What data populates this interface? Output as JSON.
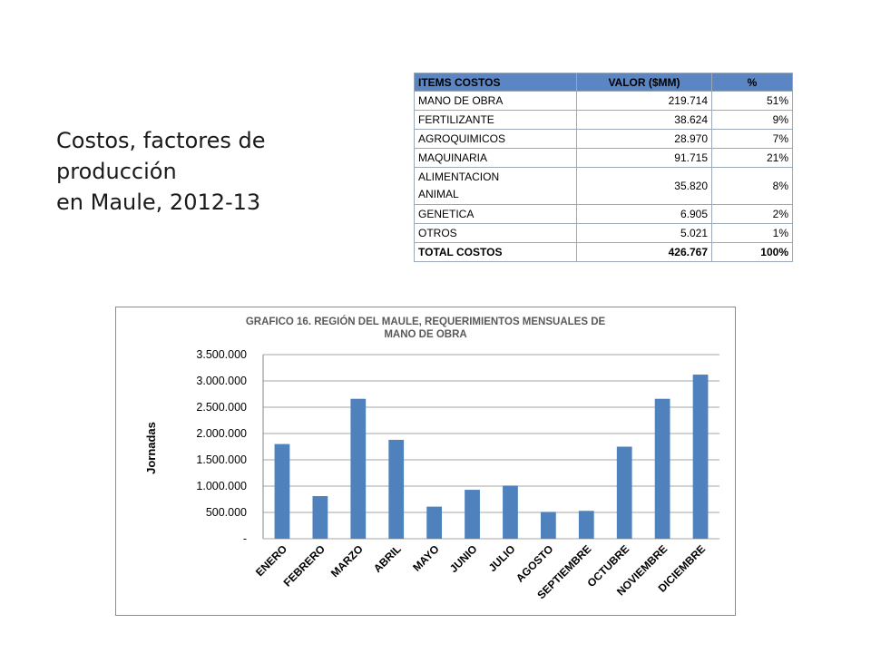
{
  "slide": {
    "title_line1": "Costos, factores de producción",
    "title_line2": "en Maule, 2012-13"
  },
  "cost_table": {
    "headers": [
      "ITEMS COSTOS",
      "VALOR ($MM)",
      "%"
    ],
    "rows": [
      {
        "item": "MANO DE OBRA",
        "value": "219.714",
        "pct": "51%"
      },
      {
        "item": "FERTILIZANTE",
        "value": "38.624",
        "pct": "9%"
      },
      {
        "item": "AGROQUIMICOS",
        "value": "28.970",
        "pct": "7%"
      },
      {
        "item": "MAQUINARIA",
        "value": "91.715",
        "pct": "21%"
      },
      {
        "item_line1": "ALIMENTACION",
        "item_line2": "ANIMAL",
        "value": "35.820",
        "pct": "8%"
      },
      {
        "item": "GENETICA",
        "value": "6.905",
        "pct": "2%"
      },
      {
        "item": "OTROS",
        "value": "5.021",
        "pct": "1%"
      }
    ],
    "total": {
      "item": "TOTAL COSTOS",
      "value": "426.767",
      "pct": "100%"
    },
    "header_color": "#5b86c3"
  },
  "chart_data": {
    "type": "bar",
    "title_line1": "GRAFICO 16. REGIÓN DEL MAULE, REQUERIMIENTOS MENSUALES DE",
    "title_line2": "MANO DE OBRA",
    "ylabel": "Jornadas",
    "xlabel": "",
    "categories": [
      "ENERO",
      "FEBRERO",
      "MARZO",
      "ABRIL",
      "MAYO",
      "JUNIO",
      "JULIO",
      "AGOSTO",
      "SEPTIEMBRE",
      "OCTUBRE",
      "NOVIEMBRE",
      "DICIEMBRE"
    ],
    "values": [
      1800000,
      810000,
      2660000,
      1880000,
      610000,
      930000,
      1010000,
      510000,
      530000,
      1750000,
      2660000,
      3120000
    ],
    "ylim": [
      0,
      3500000
    ],
    "yticks": [
      0,
      500000,
      1000000,
      1500000,
      2000000,
      2500000,
      3000000,
      3500000
    ],
    "ytick_labels": [
      "-",
      "500.000",
      "1.000.000",
      "1.500.000",
      "2.000.000",
      "2.500.000",
      "3.000.000",
      "3.500.000"
    ],
    "grid": true,
    "legend": "none",
    "bar_color": "#4f81bd"
  }
}
